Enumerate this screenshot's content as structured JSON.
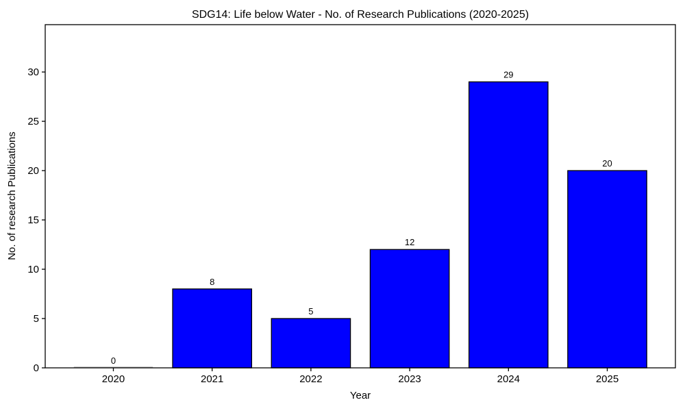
{
  "chart_data": {
    "type": "bar",
    "title": "SDG14: Life below Water - No. of Research Publications (2020-2025)",
    "xlabel": "Year",
    "ylabel": "No. of research Publications",
    "categories": [
      "2020",
      "2021",
      "2022",
      "2023",
      "2024",
      "2025"
    ],
    "values": [
      0,
      8,
      5,
      12,
      29,
      20
    ],
    "bar_labels": [
      "0",
      "8",
      "5",
      "12",
      "29",
      "20"
    ],
    "yticks": [
      0,
      5,
      10,
      15,
      20,
      25,
      30
    ],
    "ylim": [
      0,
      34.8
    ],
    "grid": false,
    "legend": "none",
    "colors": {
      "bar_fill": "#0000ff",
      "bar_edge": "#000000",
      "zero_bar_edge": "#aaaaaa",
      "spine": "#000000",
      "text": "#000000",
      "background": "#ffffff"
    }
  }
}
